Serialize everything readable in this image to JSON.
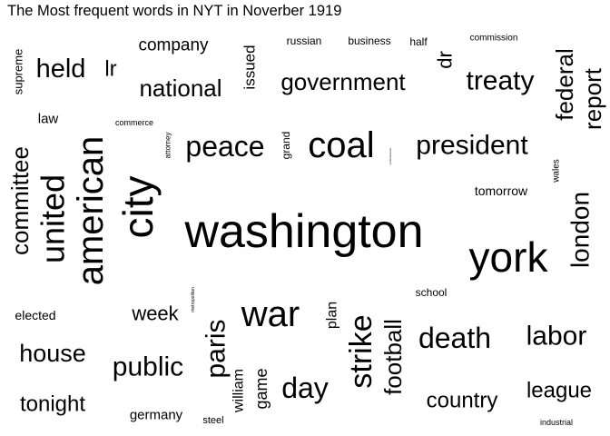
{
  "chart_data": {
    "type": "wordcloud",
    "title": "The Most frequent words in NYT in Noverber 1919",
    "color": "#000000",
    "words": [
      {
        "text": "washington",
        "weight": 100
      },
      {
        "text": "york",
        "weight": 88
      },
      {
        "text": "city",
        "weight": 80
      },
      {
        "text": "american",
        "weight": 76
      },
      {
        "text": "united",
        "weight": 72
      },
      {
        "text": "war",
        "weight": 64
      },
      {
        "text": "coal",
        "weight": 58
      },
      {
        "text": "strike",
        "weight": 52
      },
      {
        "text": "london",
        "weight": 47
      },
      {
        "text": "peace",
        "weight": 42
      },
      {
        "text": "president",
        "weight": 42
      },
      {
        "text": "death",
        "weight": 42
      },
      {
        "text": "day",
        "weight": 42
      },
      {
        "text": "committee",
        "weight": 40
      },
      {
        "text": "paris",
        "weight": 40
      },
      {
        "text": "football",
        "weight": 38
      },
      {
        "text": "labor",
        "weight": 38
      },
      {
        "text": "public",
        "weight": 38
      },
      {
        "text": "held",
        "weight": 36
      },
      {
        "text": "treaty",
        "weight": 36
      },
      {
        "text": "report",
        "weight": 36
      },
      {
        "text": "federal",
        "weight": 36
      },
      {
        "text": "house",
        "weight": 34
      },
      {
        "text": "national",
        "weight": 33
      },
      {
        "text": "government",
        "weight": 33
      },
      {
        "text": "country",
        "weight": 32
      },
      {
        "text": "league",
        "weight": 32
      },
      {
        "text": "tonight",
        "weight": 30
      },
      {
        "text": "week",
        "weight": 28
      },
      {
        "text": "lr",
        "weight": 27
      },
      {
        "text": "dr",
        "weight": 27
      },
      {
        "text": "company",
        "weight": 24
      },
      {
        "text": "issued",
        "weight": 22
      },
      {
        "text": "plan",
        "weight": 20
      },
      {
        "text": "game",
        "weight": 22
      },
      {
        "text": "william",
        "weight": 19
      },
      {
        "text": "germany",
        "weight": 19
      },
      {
        "text": "law",
        "weight": 19
      },
      {
        "text": "elected",
        "weight": 17
      },
      {
        "text": "tomorrow",
        "weight": 17
      },
      {
        "text": "supreme",
        "weight": 17
      },
      {
        "text": "grand",
        "weight": 16
      },
      {
        "text": "russian",
        "weight": 15
      },
      {
        "text": "business",
        "weight": 15
      },
      {
        "text": "half",
        "weight": 15
      },
      {
        "text": "school",
        "weight": 14
      },
      {
        "text": "wales",
        "weight": 13
      },
      {
        "text": "steel",
        "weight": 13
      },
      {
        "text": "commission",
        "weight": 12
      },
      {
        "text": "commerce",
        "weight": 11
      },
      {
        "text": "industrial",
        "weight": 11
      },
      {
        "text": "attorney",
        "weight": 9
      },
      {
        "text": "metropolitan",
        "weight": 7
      },
      {
        "text": "commissioner",
        "weight": 5
      }
    ]
  }
}
